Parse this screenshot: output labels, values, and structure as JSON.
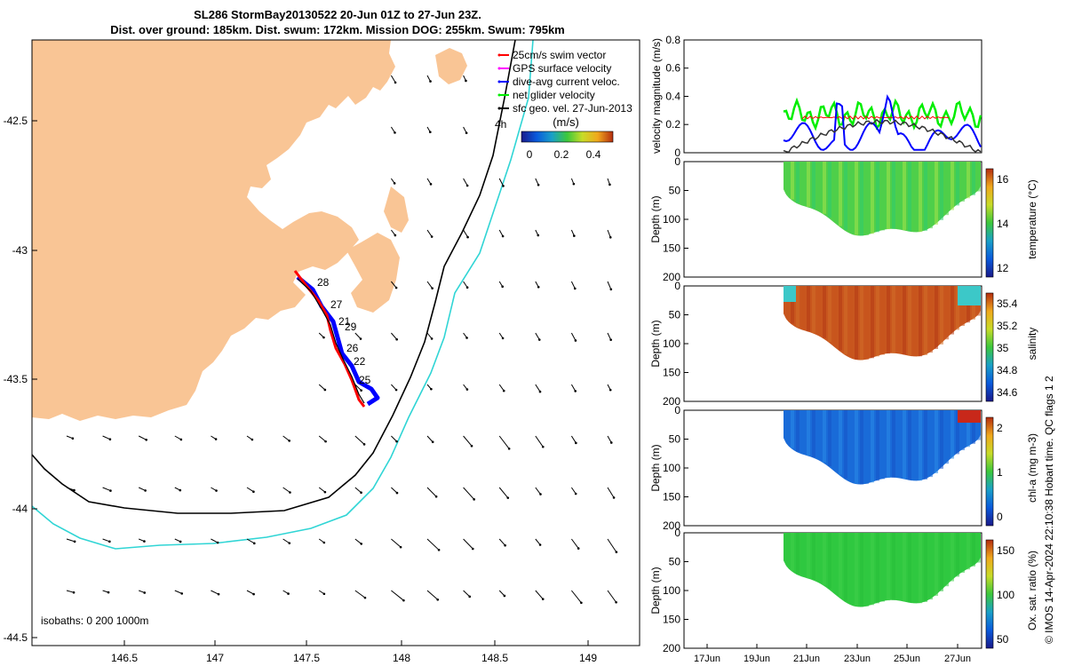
{
  "title_line1": "SL286 StormBay20130522 20-Jun 01Z to 27-Jun 23Z.",
  "title_line2": "Dist. over ground: 185km. Dist. swum: 172km. Mission DOG: 255km. Swum: 795km",
  "colors": {
    "land": "#f9c595",
    "isobath_200": "#000000",
    "isobath_1000": "#30d5d5",
    "swim_vector": "#ff0000",
    "gps_velocity": "#ff00ff",
    "dive_avg": "#0000ff",
    "net_velocity": "#00ee00",
    "sfc_geo": "#000000"
  },
  "chart_data": [
    {
      "type": "map",
      "x_ticks": [
        "146.5",
        "147",
        "147.5",
        "148",
        "148.5",
        "149"
      ],
      "y_ticks": [
        "-42.5",
        "-43",
        "-43.5",
        "-44",
        "-44.5"
      ],
      "legend": {
        "items": [
          "25cm/s swim vector",
          "GPS surface velocity",
          "dive-avg current veloc.",
          "net glider velocity",
          "sfc geo. vel. 27-Jun-2013"
        ],
        "extra_label": "4h",
        "colorbar_title": "(m/s)",
        "colorbar_ticks": [
          "0",
          "0.2",
          "0.4"
        ]
      },
      "day_labels": [
        "28",
        "27",
        "21",
        "29",
        "26",
        "22",
        "25"
      ],
      "isobaths_label": "isobaths: 0   200  1000m"
    },
    {
      "type": "line",
      "ylabel": "velocity magnitude (m/s)",
      "y_ticks": [
        "0",
        "0.2",
        "0.4",
        "0.6",
        "0.8"
      ],
      "ylim": [
        0,
        0.8
      ]
    },
    {
      "type": "heatmap",
      "ylabel": "Depth (m)",
      "y_ticks": [
        "0",
        "50",
        "100",
        "150",
        "200"
      ],
      "colorbar_label": "temperature (°C)",
      "colorbar_ticks": [
        "12",
        "14",
        "16"
      ],
      "colormap": [
        "#1a1a8a",
        "#0a5adc",
        "#1aa0c8",
        "#3cc83c",
        "#c8dc28",
        "#f0a81c",
        "#b42d0f"
      ]
    },
    {
      "type": "heatmap",
      "ylabel": "Depth (m)",
      "y_ticks": [
        "0",
        "50",
        "100",
        "150",
        "200"
      ],
      "colorbar_label": "salinity",
      "colorbar_ticks": [
        "34.6",
        "34.8",
        "35",
        "35.2",
        "35.4"
      ],
      "colormap": [
        "#1a1a8a",
        "#0a5adc",
        "#1aa0c8",
        "#3cc83c",
        "#c8dc28",
        "#f0a81c",
        "#b42d0f"
      ]
    },
    {
      "type": "heatmap",
      "ylabel": "Depth (m)",
      "y_ticks": [
        "0",
        "50",
        "100",
        "150",
        "200"
      ],
      "colorbar_label": "chl-a (mg m-3)",
      "colorbar_ticks": [
        "0",
        "1",
        "2"
      ],
      "colormap": [
        "#1a1a8a",
        "#0a5adc",
        "#1aa0c8",
        "#3cc83c",
        "#c8dc28",
        "#f0a81c",
        "#b42d0f"
      ]
    },
    {
      "type": "heatmap",
      "ylabel": "Depth (m)",
      "y_ticks": [
        "0",
        "50",
        "100",
        "150",
        "200"
      ],
      "x_ticks": [
        "17Jun",
        "19Jun",
        "21Jun",
        "23Jun",
        "25Jun",
        "27Jun"
      ],
      "colorbar_label": "Ox. sat. ratio (%)",
      "colorbar_ticks": [
        "50",
        "100",
        "150"
      ],
      "colormap": [
        "#1a1a8a",
        "#0a5adc",
        "#1aa0c8",
        "#3cc83c",
        "#c8dc28",
        "#f0a81c",
        "#b42d0f"
      ]
    }
  ],
  "credit": "© IMOS 14-Apr-2024 22:10:38 Hobart time. QC flags 1  2"
}
